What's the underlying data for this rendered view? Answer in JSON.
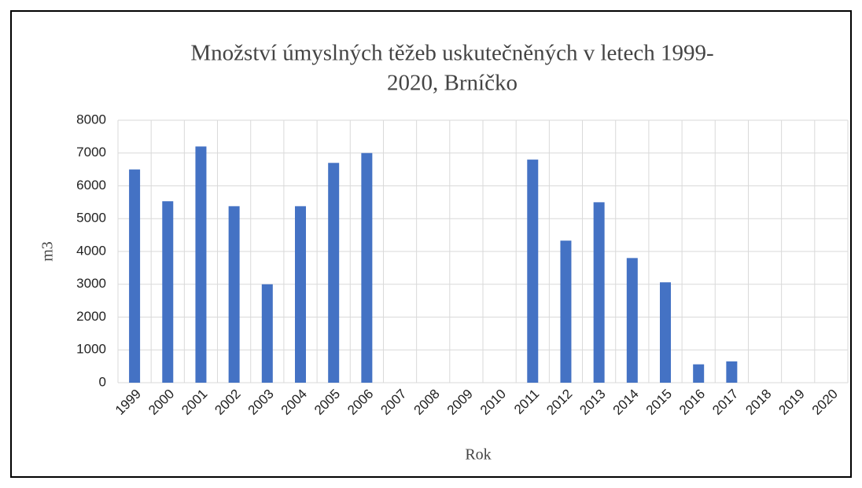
{
  "chart_data": {
    "type": "bar",
    "title": [
      "Množství úmyslných  těžeb uskutečněných  v letech 1999-",
      "2020, Brníčko"
    ],
    "x_label": "Rok",
    "y_label": "m3",
    "categories": [
      "1999",
      "2000",
      "2001",
      "2002",
      "2003",
      "2004",
      "2005",
      "2006",
      "2007",
      "2008",
      "2009",
      "2010",
      "2011",
      "2012",
      "2013",
      "2014",
      "2015",
      "2016",
      "2017",
      "2018",
      "2019",
      "2020"
    ],
    "values": [
      6500,
      5530,
      7200,
      5380,
      3000,
      5380,
      6700,
      7000,
      0,
      0,
      0,
      0,
      6800,
      4330,
      5500,
      3800,
      3060,
      560,
      650,
      0,
      0,
      0
    ],
    "color": "#4472c4",
    "ylim": [
      0,
      8000
    ],
    "yticks": [
      0,
      1000,
      2000,
      3000,
      4000,
      5000,
      6000,
      7000,
      8000
    ],
    "grid": true
  }
}
